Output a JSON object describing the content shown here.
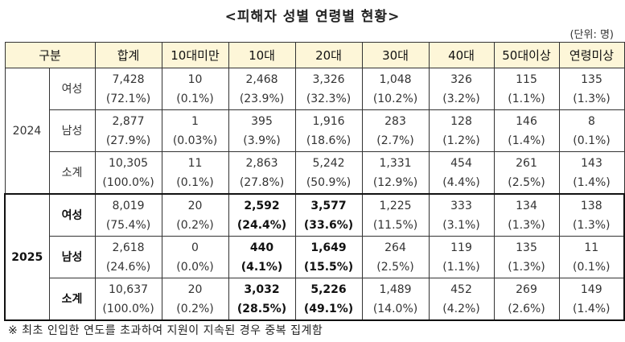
{
  "title": "<피해자 성별 연령별 현황>",
  "unit": "(단위: 명)",
  "headers": [
    "구분",
    "합계",
    "10대미만",
    "10대",
    "20대",
    "30대",
    "40대",
    "50대이상",
    "연령미상"
  ],
  "groups": [
    {
      "year": "2024",
      "rows": [
        {
          "label": "여성",
          "cells": [
            [
              "7,428",
              "(72.1%)"
            ],
            [
              "10",
              "(0.1%)"
            ],
            [
              "2,468",
              "(23.9%)"
            ],
            [
              "3,326",
              "(32.3%)"
            ],
            [
              "1,048",
              "(10.2%)"
            ],
            [
              "326",
              "(3.2%)"
            ],
            [
              "115",
              "(1.1%)"
            ],
            [
              "135",
              "(1.3%)"
            ]
          ]
        },
        {
          "label": "남성",
          "cells": [
            [
              "2,877",
              "(27.9%)"
            ],
            [
              "1",
              "(0.03%)"
            ],
            [
              "395",
              "(3.9%)"
            ],
            [
              "1,916",
              "(18.6%)"
            ],
            [
              "283",
              "(2.7%)"
            ],
            [
              "128",
              "(1.2%)"
            ],
            [
              "146",
              "(1.4%)"
            ],
            [
              "8",
              "(0.1%)"
            ]
          ]
        },
        {
          "label": "소계",
          "cells": [
            [
              "10,305",
              "(100.0%)"
            ],
            [
              "11",
              "(0.1%)"
            ],
            [
              "2,863",
              "(27.8%)"
            ],
            [
              "5,242",
              "(50.9%)"
            ],
            [
              "1,331",
              "(12.9%)"
            ],
            [
              "454",
              "(4.4%)"
            ],
            [
              "261",
              "(2.5%)"
            ],
            [
              "143",
              "(1.4%)"
            ]
          ]
        }
      ]
    },
    {
      "year": "2025",
      "rows": [
        {
          "label": "여성",
          "cells": [
            [
              "8,019",
              "(75.4%)"
            ],
            [
              "20",
              "(0.2%)"
            ],
            [
              "2,592",
              "(24.4%)"
            ],
            [
              "3,577",
              "(33.6%)"
            ],
            [
              "1,225",
              "(11.5%)"
            ],
            [
              "333",
              "(3.1%)"
            ],
            [
              "134",
              "(1.3%)"
            ],
            [
              "138",
              "(1.3%)"
            ]
          ]
        },
        {
          "label": "남성",
          "cells": [
            [
              "2,618",
              "(24.6%)"
            ],
            [
              "0",
              "(0.0%)"
            ],
            [
              "440",
              "(4.1%)"
            ],
            [
              "1,649",
              "(15.5%)"
            ],
            [
              "264",
              "(2.5%)"
            ],
            [
              "119",
              "(1.1%)"
            ],
            [
              "135",
              "(1.3%)"
            ],
            [
              "11",
              "(0.1%)"
            ]
          ]
        },
        {
          "label": "소계",
          "cells": [
            [
              "10,637",
              "(100.0%)"
            ],
            [
              "20",
              "(0.2%)"
            ],
            [
              "3,032",
              "(28.5%)"
            ],
            [
              "5,226",
              "(49.1%)"
            ],
            [
              "1,489",
              "(14.0%)"
            ],
            [
              "452",
              "(4.2%)"
            ],
            [
              "269",
              "(2.6%)"
            ],
            [
              "149",
              "(1.4%)"
            ]
          ]
        }
      ]
    }
  ],
  "note": "※ 최초 인입한 연도를 초과하여 지원이 지속된 경우 중복 집계함"
}
